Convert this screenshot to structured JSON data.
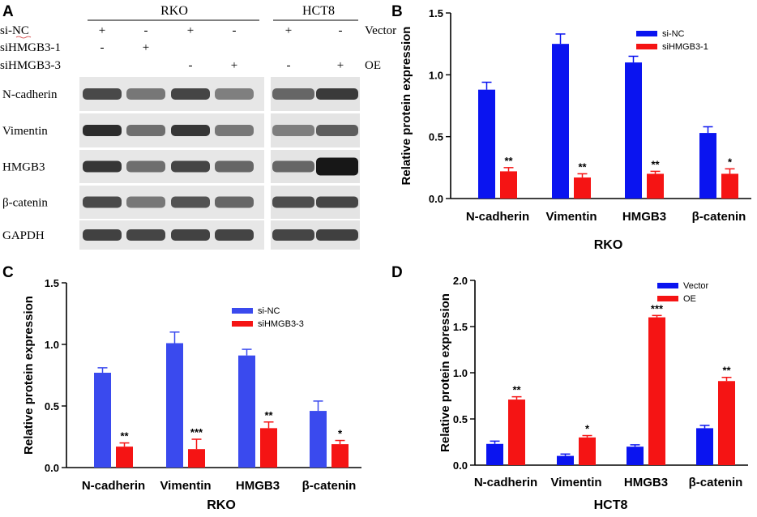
{
  "blot": {
    "letter": "A",
    "cell_lines": [
      "RKO",
      "HCT8"
    ],
    "condition_rows": [
      {
        "label": "si-NC",
        "lanes": [
          "+",
          "-",
          "+",
          "-",
          "+",
          "-"
        ],
        "right_label": "Vector"
      },
      {
        "label": "siHMGB3-1",
        "lanes": [
          "-",
          "+",
          "",
          "",
          "",
          ""
        ],
        "right_label": ""
      },
      {
        "label": "siHMGB3-3",
        "lanes": [
          "",
          "",
          "-",
          "+",
          "-",
          "+"
        ],
        "right_label": "OE"
      }
    ],
    "proteins": [
      "N-cadherin",
      "Vimentin",
      "HMGB3",
      "β-catenin",
      "GAPDH"
    ]
  },
  "colors": {
    "blue": "#0a14f0",
    "red": "#f51414",
    "blue_c": "#3a4aee",
    "axis": "#000000"
  },
  "chart_data": [
    {
      "letter": "B",
      "type": "bar",
      "title": "",
      "xlabel": "RKO",
      "ylabel": "Relative protein expression",
      "ylim": [
        0,
        1.5
      ],
      "yticks": [
        "0.0",
        "0.5",
        "1.0",
        "1.5"
      ],
      "categories": [
        "N-cadherin",
        "Vimentin",
        "HMGB3",
        "β-catenin"
      ],
      "series": [
        {
          "name": "si-NC",
          "values": [
            0.88,
            1.25,
            1.1,
            0.53
          ],
          "errors": [
            0.06,
            0.08,
            0.05,
            0.05
          ]
        },
        {
          "name": "siHMGB3-1",
          "values": [
            0.22,
            0.17,
            0.2,
            0.2
          ],
          "errors": [
            0.03,
            0.03,
            0.02,
            0.04
          ]
        }
      ],
      "significance": [
        "**",
        "**",
        "**",
        "*"
      ],
      "legend": "top-right"
    },
    {
      "letter": "C",
      "type": "bar",
      "title": "",
      "xlabel": "RKO",
      "ylabel": "Relative protein expression",
      "ylim": [
        0,
        1.5
      ],
      "yticks": [
        "0.0",
        "0.5",
        "1.0",
        "1.5"
      ],
      "categories": [
        "N-cadherin",
        "Vimentin",
        "HMGB3",
        "β-catenin"
      ],
      "series": [
        {
          "name": "si-NC",
          "values": [
            0.77,
            1.01,
            0.91,
            0.46
          ],
          "errors": [
            0.04,
            0.09,
            0.05,
            0.08
          ]
        },
        {
          "name": "siHMGB3-3",
          "values": [
            0.17,
            0.15,
            0.32,
            0.19
          ],
          "errors": [
            0.03,
            0.08,
            0.05,
            0.03
          ]
        }
      ],
      "significance": [
        "**",
        "***",
        "**",
        "*"
      ],
      "legend": "top-right"
    },
    {
      "letter": "D",
      "type": "bar",
      "title": "",
      "xlabel": "HCT8",
      "ylabel": "Relative protein expression",
      "ylim": [
        0,
        2.0
      ],
      "yticks": [
        "0.0",
        "0.5",
        "1.0",
        "1.5",
        "2.0"
      ],
      "categories": [
        "N-cadherin",
        "Vimentin",
        "HMGB3",
        "β-catenin"
      ],
      "series": [
        {
          "name": "Vector",
          "values": [
            0.23,
            0.1,
            0.2,
            0.4
          ],
          "errors": [
            0.03,
            0.02,
            0.02,
            0.03
          ]
        },
        {
          "name": "OE",
          "values": [
            0.71,
            0.3,
            1.6,
            0.91
          ],
          "errors": [
            0.03,
            0.02,
            0.02,
            0.04
          ]
        }
      ],
      "significance": [
        "**",
        "*",
        "***",
        "**"
      ],
      "legend": "top-right"
    }
  ]
}
